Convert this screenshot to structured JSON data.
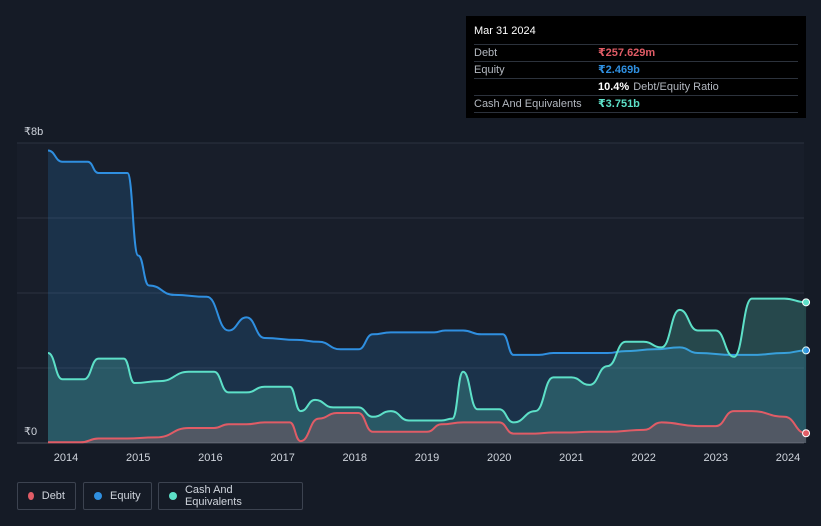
{
  "tooltip": {
    "date": "Mar 31 2024",
    "debt_label": "Debt",
    "debt_value": "₹257.629m",
    "equity_label": "Equity",
    "equity_value": "₹2.469b",
    "ratio_value": "10.4%",
    "ratio_label": "Debt/Equity Ratio",
    "cash_label": "Cash And Equivalents",
    "cash_value": "₹3.751b"
  },
  "legend": {
    "debt": "Debt",
    "equity": "Equity",
    "cash": "Cash And Equivalents"
  },
  "colors": {
    "debt": "#e05c66",
    "equity": "#2f8fe0",
    "cash": "#5de0c8"
  },
  "chart_data": {
    "type": "area",
    "ylabel_top": "₹8b",
    "ylabel_bottom": "₹0",
    "ylim": [
      0,
      8
    ],
    "unit": "₹ billions",
    "x_ticks": [
      "2014",
      "2015",
      "2016",
      "2017",
      "2018",
      "2019",
      "2020",
      "2021",
      "2022",
      "2023",
      "2024"
    ],
    "grid": true,
    "legend_position": "bottom-left",
    "series": [
      {
        "name": "Equity",
        "x": [
          2013.75,
          2013.95,
          2014.3,
          2014.45,
          2014.85,
          2015.0,
          2015.15,
          2015.5,
          2015.95,
          2016.25,
          2016.5,
          2016.75,
          2017.2,
          2017.5,
          2017.8,
          2018.05,
          2018.25,
          2018.5,
          2019.1,
          2019.25,
          2019.5,
          2019.75,
          2020.05,
          2020.2,
          2020.55,
          2020.75,
          2021.5,
          2021.75,
          2022.15,
          2022.5,
          2022.75,
          2023.25,
          2023.5,
          2023.95,
          2024.25
        ],
        "values": [
          7.8,
          7.5,
          7.5,
          7.2,
          7.2,
          5.0,
          4.2,
          3.95,
          3.9,
          3.0,
          3.35,
          2.8,
          2.75,
          2.7,
          2.5,
          2.5,
          2.9,
          2.95,
          2.95,
          3.0,
          3.0,
          2.9,
          2.9,
          2.35,
          2.35,
          2.4,
          2.4,
          2.45,
          2.5,
          2.55,
          2.4,
          2.35,
          2.35,
          2.4,
          2.469
        ]
      },
      {
        "name": "Cash And Equivalents",
        "x": [
          2013.75,
          2013.95,
          2014.25,
          2014.45,
          2014.8,
          2014.95,
          2015.3,
          2015.7,
          2016.05,
          2016.25,
          2016.5,
          2016.75,
          2017.1,
          2017.25,
          2017.45,
          2017.7,
          2018.05,
          2018.25,
          2018.5,
          2018.75,
          2019.2,
          2019.35,
          2019.5,
          2019.7,
          2020.0,
          2020.2,
          2020.5,
          2020.75,
          2021.0,
          2021.25,
          2021.5,
          2021.75,
          2022.0,
          2022.25,
          2022.5,
          2022.75,
          2023.0,
          2023.25,
          2023.5,
          2023.95,
          2024.25
        ],
        "values": [
          2.4,
          1.7,
          1.7,
          2.25,
          2.25,
          1.6,
          1.65,
          1.9,
          1.9,
          1.35,
          1.35,
          1.5,
          1.5,
          0.85,
          1.15,
          0.95,
          0.95,
          0.7,
          0.85,
          0.6,
          0.6,
          0.65,
          1.9,
          0.9,
          0.9,
          0.55,
          0.85,
          1.75,
          1.75,
          1.55,
          2.05,
          2.7,
          2.7,
          2.55,
          3.55,
          3.0,
          3.0,
          2.3,
          3.85,
          3.85,
          3.751
        ]
      },
      {
        "name": "Debt",
        "x": [
          2013.75,
          2014.2,
          2014.45,
          2014.8,
          2015.25,
          2015.7,
          2016.05,
          2016.25,
          2016.5,
          2016.75,
          2017.1,
          2017.25,
          2017.5,
          2017.75,
          2018.05,
          2018.25,
          2018.5,
          2019.0,
          2019.2,
          2019.5,
          2020.0,
          2020.2,
          2020.5,
          2020.75,
          2021.0,
          2021.25,
          2021.5,
          2022.0,
          2022.25,
          2022.75,
          2023.0,
          2023.25,
          2023.5,
          2023.95,
          2024.25
        ],
        "values": [
          0.02,
          0.02,
          0.12,
          0.12,
          0.15,
          0.4,
          0.4,
          0.5,
          0.5,
          0.55,
          0.55,
          0.05,
          0.65,
          0.8,
          0.8,
          0.3,
          0.3,
          0.3,
          0.5,
          0.55,
          0.55,
          0.25,
          0.25,
          0.28,
          0.28,
          0.3,
          0.3,
          0.35,
          0.55,
          0.45,
          0.45,
          0.85,
          0.85,
          0.7,
          0.26
        ]
      }
    ]
  }
}
